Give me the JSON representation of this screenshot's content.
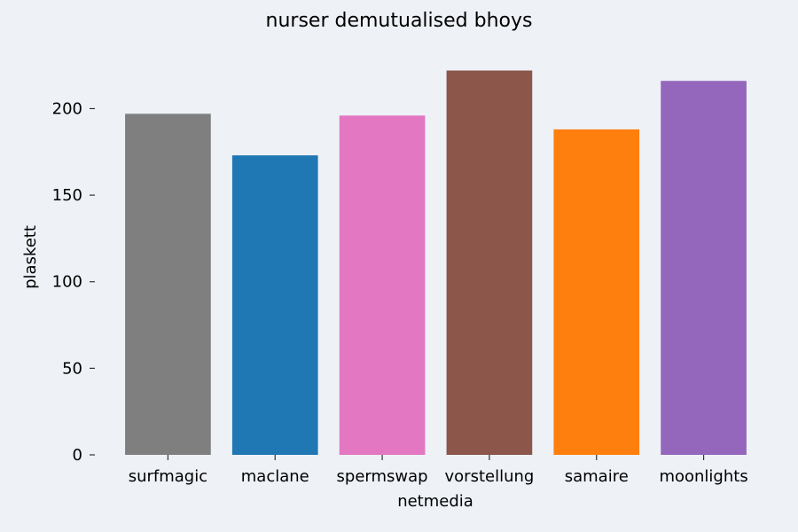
{
  "chart_data": {
    "type": "bar",
    "title": "nurser demutualised bhoys",
    "xlabel": "netmedia",
    "ylabel": "plaskett",
    "categories": [
      "surfmagic",
      "maclane",
      "spermswap",
      "vorstellung",
      "samaire",
      "moonlights"
    ],
    "values": [
      197,
      173,
      196,
      222,
      188,
      216
    ],
    "colors": [
      "#7f7f7f",
      "#1f77b4",
      "#e377c2",
      "#8c564b",
      "#ff7f0e",
      "#9467bd"
    ],
    "ylim": [
      0,
      232
    ],
    "yticks": [
      0,
      50,
      100,
      150,
      200
    ],
    "grid": false,
    "legend": "none"
  },
  "theme": {
    "background": "#eef1f6"
  }
}
